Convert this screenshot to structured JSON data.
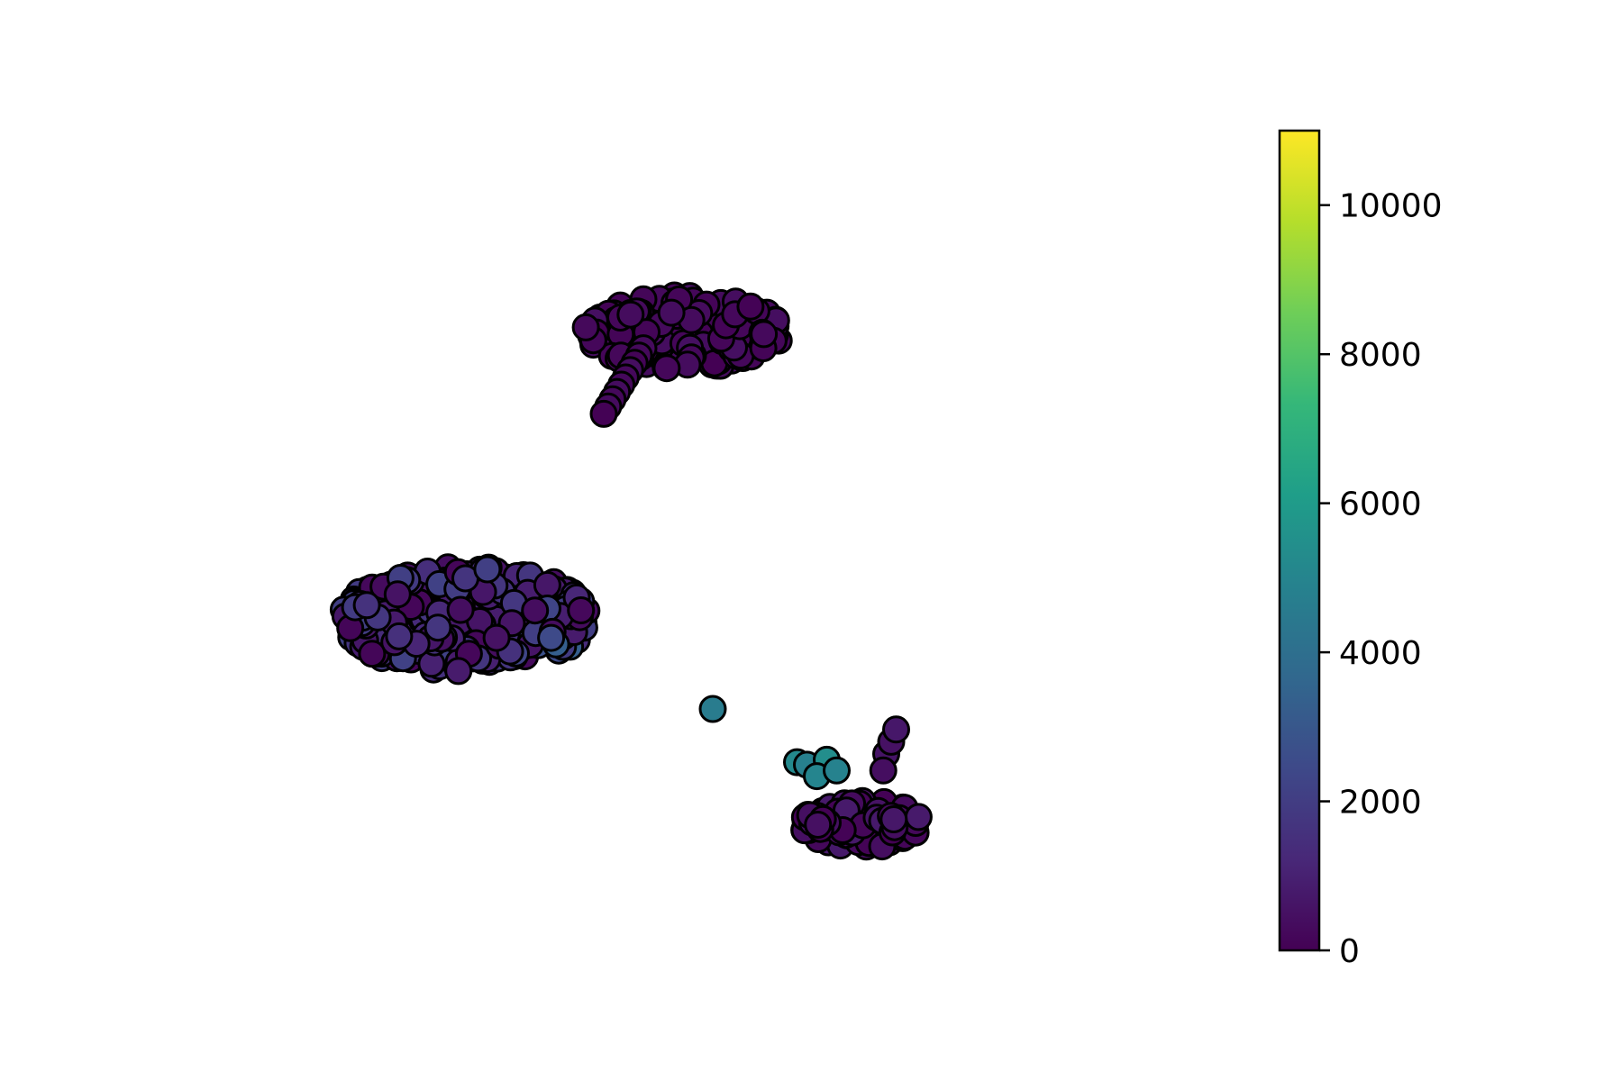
{
  "chart_data": {
    "type": "scatter",
    "title": "",
    "xlabel": "",
    "ylabel": "",
    "axes_visible": false,
    "grid": false,
    "marker": {
      "shape": "circle",
      "edgecolor": "#000000"
    },
    "xlim": [
      0,
      100
    ],
    "ylim": [
      0,
      100
    ],
    "colorbar": {
      "colormap": "viridis",
      "range": [
        0,
        11000
      ],
      "ticks": [
        0,
        2000,
        4000,
        6000,
        8000,
        10000
      ],
      "tick_labels": [
        "0",
        "2000",
        "4000",
        "6000",
        "8000",
        "10000"
      ],
      "stops": [
        "#440154",
        "#482878",
        "#3e4989",
        "#31688e",
        "#26828e",
        "#1f9e89",
        "#35b779",
        "#6ece58",
        "#b5de2b",
        "#fde725"
      ]
    },
    "clusters": [
      {
        "shape": "ring",
        "center": [
          48,
          76
        ],
        "radius": [
          10,
          4.5
        ],
        "count": 210,
        "value_range": [
          0,
          450
        ],
        "tail": {
          "from": [
            44,
            74
          ],
          "to": [
            40,
            66
          ],
          "count": 10
        }
      },
      {
        "shape": "ring",
        "center": [
          26,
          41
        ],
        "radius": [
          12.5,
          6.5
        ],
        "count": 330,
        "value_range": [
          100,
          2300
        ],
        "gradient": {
          "toward": [
            38,
            37
          ],
          "extra": 2800
        }
      },
      {
        "shape": "ring",
        "center": [
          66,
          16
        ],
        "radius": [
          6,
          3
        ],
        "count": 95,
        "value_range": [
          0,
          800
        ],
        "extra_points": [
          {
            "x": 59.5,
            "y": 23.5,
            "value": 5200
          },
          {
            "x": 60.5,
            "y": 23.2,
            "value": 4800
          },
          {
            "x": 62.5,
            "y": 23.8,
            "value": 5400
          },
          {
            "x": 61.5,
            "y": 21.8,
            "value": 5000
          },
          {
            "x": 63.5,
            "y": 22.5,
            "value": 4900
          },
          {
            "x": 68.5,
            "y": 24.5,
            "value": 600
          },
          {
            "x": 69.0,
            "y": 26.0,
            "value": 500
          },
          {
            "x": 69.5,
            "y": 27.5,
            "value": 700
          },
          {
            "x": 68.2,
            "y": 22.5,
            "value": 400
          }
        ]
      }
    ],
    "outliers": [
      {
        "x": 51,
        "y": 30,
        "value": 4600
      }
    ]
  }
}
